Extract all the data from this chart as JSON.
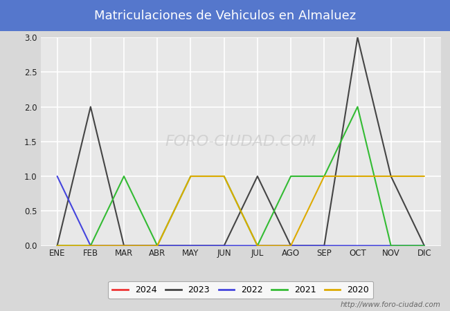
{
  "title": "Matriculaciones de Vehiculos en Almaluez",
  "title_color": "#ffffff",
  "title_bg_color": "#5577cc",
  "months": [
    "ENE",
    "FEB",
    "MAR",
    "ABR",
    "MAY",
    "JUN",
    "JUL",
    "AGO",
    "SEP",
    "OCT",
    "NOV",
    "DIC"
  ],
  "series": {
    "2024": {
      "data": [
        0,
        0,
        0,
        0,
        0,
        null,
        null,
        null,
        null,
        null,
        null,
        null
      ],
      "color": "#ee3333",
      "linewidth": 1.5
    },
    "2023": {
      "data": [
        0,
        2,
        0,
        0,
        0,
        0,
        1,
        0,
        0,
        3,
        1,
        0
      ],
      "color": "#444444",
      "linewidth": 1.5
    },
    "2022": {
      "data": [
        1,
        0,
        0,
        0,
        0,
        0,
        0,
        0,
        0,
        0,
        0,
        0
      ],
      "color": "#4444dd",
      "linewidth": 1.5
    },
    "2021": {
      "data": [
        0,
        0,
        1,
        0,
        1,
        1,
        0,
        1,
        1,
        2,
        0,
        0
      ],
      "color": "#33bb33",
      "linewidth": 1.5
    },
    "2020": {
      "data": [
        0,
        0,
        0,
        0,
        1,
        1,
        0,
        0,
        1,
        1,
        1,
        1
      ],
      "color": "#ddaa00",
      "linewidth": 1.5
    }
  },
  "ylim": [
    0,
    3.0
  ],
  "yticks": [
    0.0,
    0.5,
    1.0,
    1.5,
    2.0,
    2.5,
    3.0
  ],
  "bg_color": "#d8d8d8",
  "plot_bg_color": "#e8e8e8",
  "grid_color": "#ffffff",
  "watermark_bottom": "http://www.foro-ciudad.com",
  "watermark_center": "FORO-CIUDAD.COM",
  "legend_order": [
    "2024",
    "2023",
    "2022",
    "2021",
    "2020"
  ]
}
